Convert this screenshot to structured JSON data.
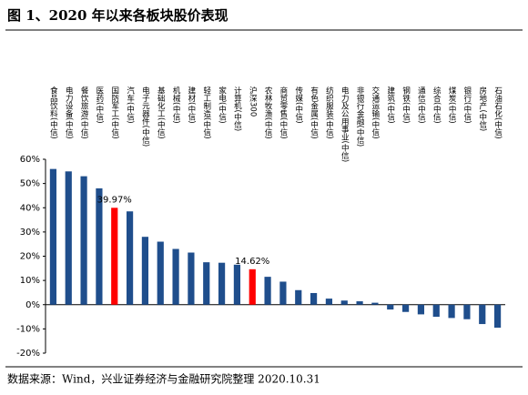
{
  "chart_data": {
    "type": "bar",
    "title": "图 1、2020 年以来各板块股价表现",
    "source": "数据来源：Wind，兴业证券经济与金融研究院整理 2020.10.31",
    "categories": [
      "食品饮料(中信)",
      "电力设备(中信)",
      "餐饮旅游(中信)",
      "医药(中信)",
      "国防军工(中信)",
      "汽车(中信)",
      "电子元器件(中信)",
      "基础化工(中信)",
      "机械(中信)",
      "建材(中信)",
      "轻工制造(中信)",
      "家电(中信)",
      "计算机(中信)",
      "沪深300",
      "农林牧渔(中信)",
      "商贸零售(中信)",
      "传媒(中信)",
      "有色金属(中信)",
      "纺织服装(中信)",
      "电力及公用事业(中信)",
      "非银行金融(中信)",
      "交通运输(中信)",
      "建筑(中信)",
      "钢铁(中信)",
      "通信(中信)",
      "综合(中信)",
      "煤炭(中信)",
      "银行(中信)",
      "房地产(中信)",
      "石油石化(中信)"
    ],
    "values": [
      56,
      55,
      53,
      48,
      39.97,
      38.5,
      28,
      26,
      23,
      21.5,
      17.5,
      17.3,
      16.5,
      14.62,
      11.5,
      9.5,
      6,
      4.8,
      2.5,
      1.7,
      1.4,
      0.8,
      -2,
      -3,
      -4,
      -5,
      -5.5,
      -6,
      -8,
      -9.5
    ],
    "value_labels": [
      null,
      null,
      null,
      null,
      "39.97%",
      null,
      null,
      null,
      null,
      null,
      null,
      null,
      null,
      "14.62%",
      null,
      null,
      null,
      null,
      null,
      null,
      null,
      null,
      null,
      null,
      null,
      null,
      null,
      null,
      null,
      null
    ],
    "colors": [
      "#1f4e8c",
      "#1f4e8c",
      "#1f4e8c",
      "#1f4e8c",
      "#ff0000",
      "#1f4e8c",
      "#1f4e8c",
      "#1f4e8c",
      "#1f4e8c",
      "#1f4e8c",
      "#1f4e8c",
      "#1f4e8c",
      "#1f4e8c",
      "#ff0000",
      "#1f4e8c",
      "#1f4e8c",
      "#1f4e8c",
      "#1f4e8c",
      "#1f4e8c",
      "#1f4e8c",
      "#1f4e8c",
      "#1f4e8c",
      "#1f4e8c",
      "#1f4e8c",
      "#1f4e8c",
      "#1f4e8c",
      "#1f4e8c",
      "#1f4e8c",
      "#1f4e8c",
      "#1f4e8c"
    ],
    "ylim": [
      -20,
      60
    ],
    "yticks": [
      {
        "value": -20,
        "label": "-20%"
      },
      {
        "value": -10,
        "label": "-10%"
      },
      {
        "value": 0,
        "label": "0%"
      },
      {
        "value": 10,
        "label": "10%"
      },
      {
        "value": 20,
        "label": "20%"
      },
      {
        "value": 30,
        "label": "30%"
      },
      {
        "value": 40,
        "label": "40%"
      },
      {
        "value": 50,
        "label": "50%"
      },
      {
        "value": 60,
        "label": "60%"
      }
    ],
    "grid": false
  }
}
